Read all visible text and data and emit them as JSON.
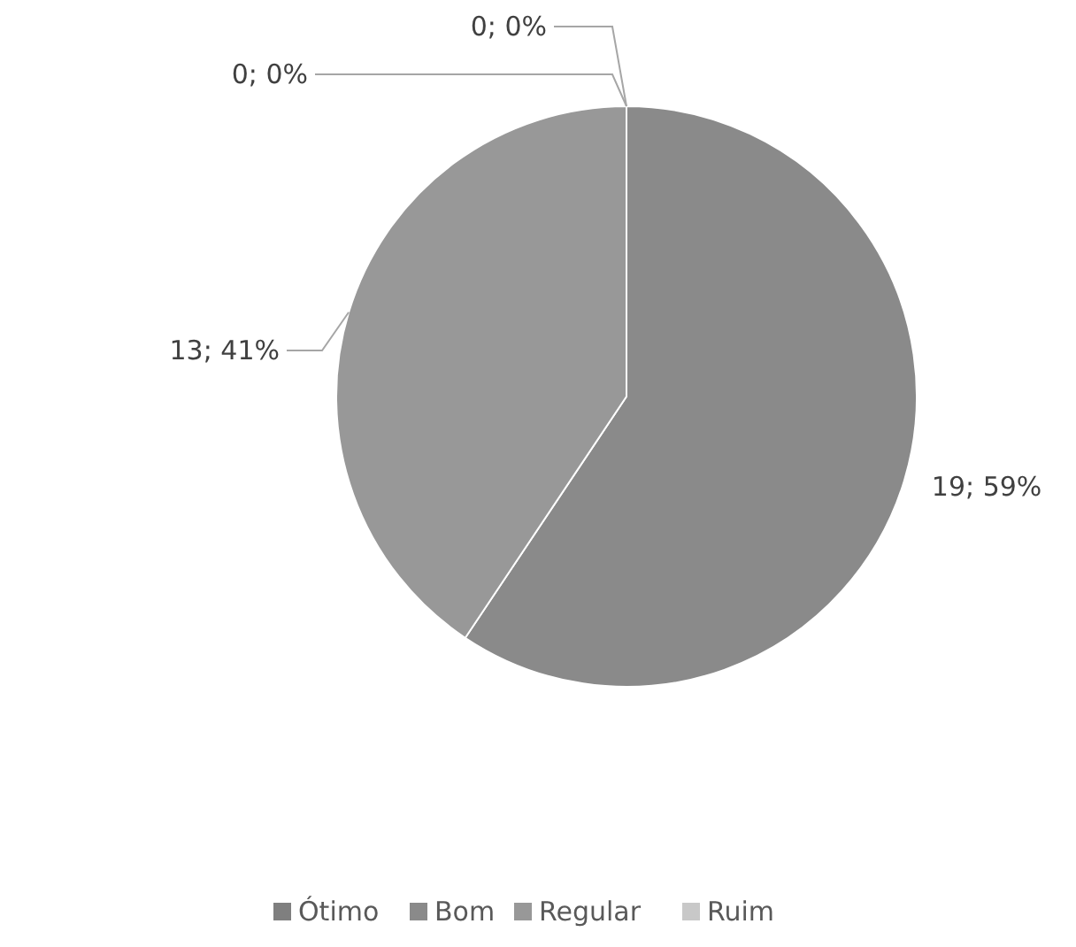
{
  "chart_data": {
    "type": "pie",
    "categories": [
      "Ótimo",
      "Bom",
      "Regular",
      "Ruim"
    ],
    "values": [
      0,
      19,
      13,
      0
    ],
    "colors": [
      "#7f7f7f",
      "#8a8a8a",
      "#989898",
      "#c8c8c8"
    ],
    "value_labels": [
      "0; 0%",
      "19; 59%",
      "13; 41%",
      "0; 0%"
    ],
    "legend": "bottom"
  }
}
